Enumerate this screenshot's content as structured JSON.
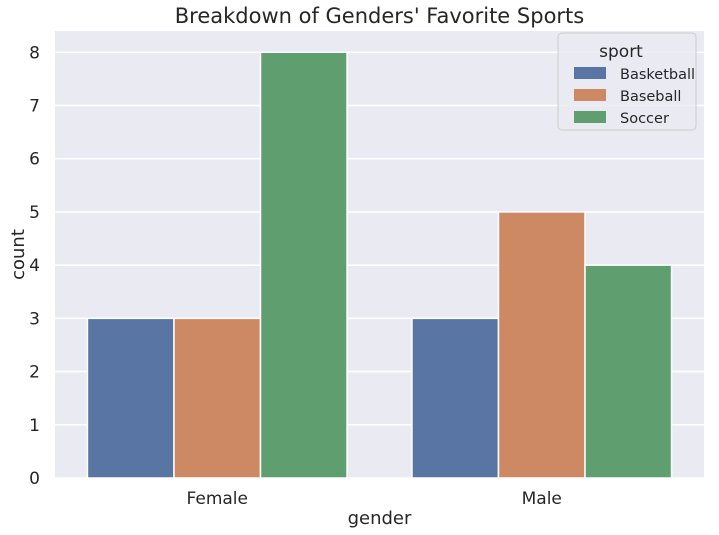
{
  "chart_data": {
    "type": "bar",
    "title": "Breakdown of Genders' Favorite Sports",
    "xlabel": "gender",
    "ylabel": "count",
    "categories": [
      "Female",
      "Male"
    ],
    "ylim": [
      0,
      8.4
    ],
    "yticks": [
      0,
      1,
      2,
      3,
      4,
      5,
      6,
      7,
      8
    ],
    "legend": {
      "title": "sport",
      "position": "top-right"
    },
    "grid": true,
    "series": [
      {
        "name": "Basketball",
        "color": "#5875a4",
        "values": [
          3,
          3
        ]
      },
      {
        "name": "Baseball",
        "color": "#cc8963",
        "values": [
          3,
          5
        ]
      },
      {
        "name": "Soccer",
        "color": "#5f9e6e",
        "values": [
          8,
          4
        ]
      }
    ]
  },
  "colors": {
    "plot_background": "#eaeaf2",
    "grid": "#ffffff",
    "text": "#262626"
  }
}
